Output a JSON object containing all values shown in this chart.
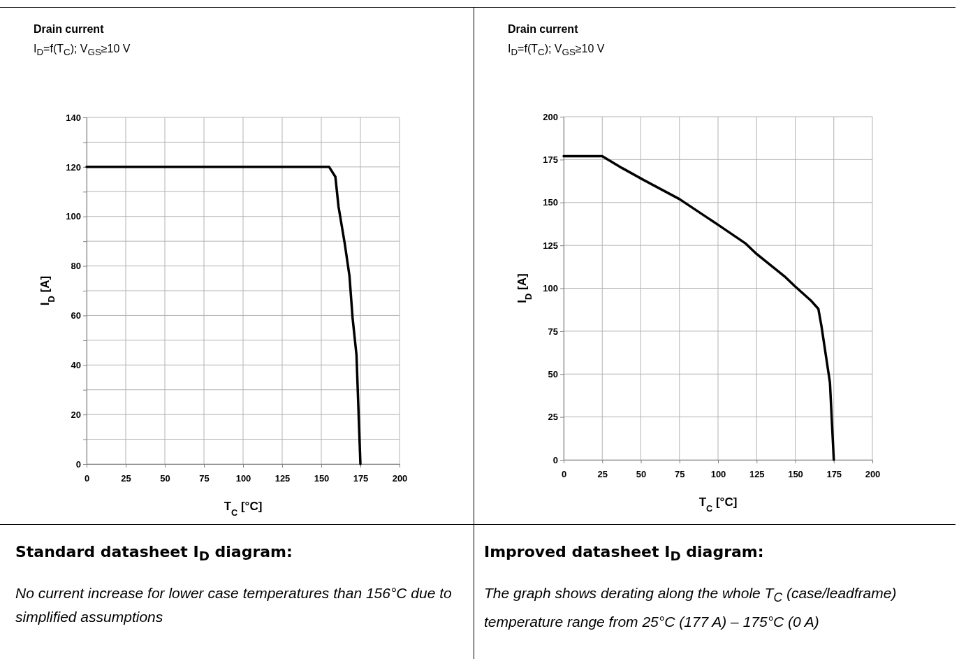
{
  "chart_data": [
    {
      "type": "line",
      "title": "Drain current",
      "subtitle": "I$_{D}$=f(T$_{C}$); V$_{GS}$≥10 V",
      "xlabel": "T$_{C}$ [°C]",
      "ylabel": "I$_{D}$ [A]",
      "xlim": [
        0,
        200
      ],
      "xticks": [
        0,
        25,
        50,
        75,
        100,
        125,
        150,
        175,
        200
      ],
      "ylim": [
        0,
        140
      ],
      "yticks": [
        0,
        {
          "value": 10,
          "label": null
        },
        20,
        {
          "value": 30,
          "label": null
        },
        40,
        {
          "value": 50,
          "label": null
        },
        60,
        {
          "value": 70,
          "label": null
        },
        80,
        {
          "value": 90,
          "label": null
        },
        100,
        {
          "value": 110,
          "label": null
        },
        120,
        {
          "value": 130,
          "label": null
        },
        140
      ],
      "grid": true,
      "series": [
        {
          "color": "#000000",
          "x": [
            0,
            155,
            159,
            161,
            165,
            168,
            170,
            172.5,
            175
          ],
          "values": [
            120,
            120,
            116,
            104,
            89,
            76,
            59,
            44,
            0
          ]
        }
      ],
      "annotations": [
        "Standard datasheet I$_{D}$ diagram:",
        "No current increase for lower case temperatures than 156°C due to simplified assumptions"
      ]
    },
    {
      "type": "line",
      "title": "Drain current",
      "subtitle": "I$_{D}$=f(T$_{C}$); V$_{GS}$≥10 V",
      "xlabel": "T$_{C}$ [°C]",
      "ylabel": "I$_{D}$ [A]",
      "xlim": [
        0,
        200
      ],
      "xticks": [
        0,
        25,
        50,
        75,
        100,
        125,
        150,
        175,
        200
      ],
      "ylim": [
        0,
        200
      ],
      "yticks": [
        0,
        25,
        50,
        75,
        100,
        125,
        150,
        175,
        200
      ],
      "grid": true,
      "series": [
        {
          "color": "#000000",
          "x": [
            0,
            25,
            38,
            50,
            75,
            100,
            118,
            125,
            143,
            150,
            160,
            165,
            167,
            172.5,
            175
          ],
          "values": [
            177,
            177,
            170,
            164,
            152,
            137,
            126,
            120,
            107,
            101,
            93,
            88,
            78,
            45,
            0
          ]
        }
      ],
      "annotations": [
        "Improved datasheet I$_{D}$ diagram:",
        "The graph shows derating along the whole T$_{C}$ (case/leadframe) temperature range from 25°C (177 A) – 175°C (0 A)"
      ]
    }
  ]
}
